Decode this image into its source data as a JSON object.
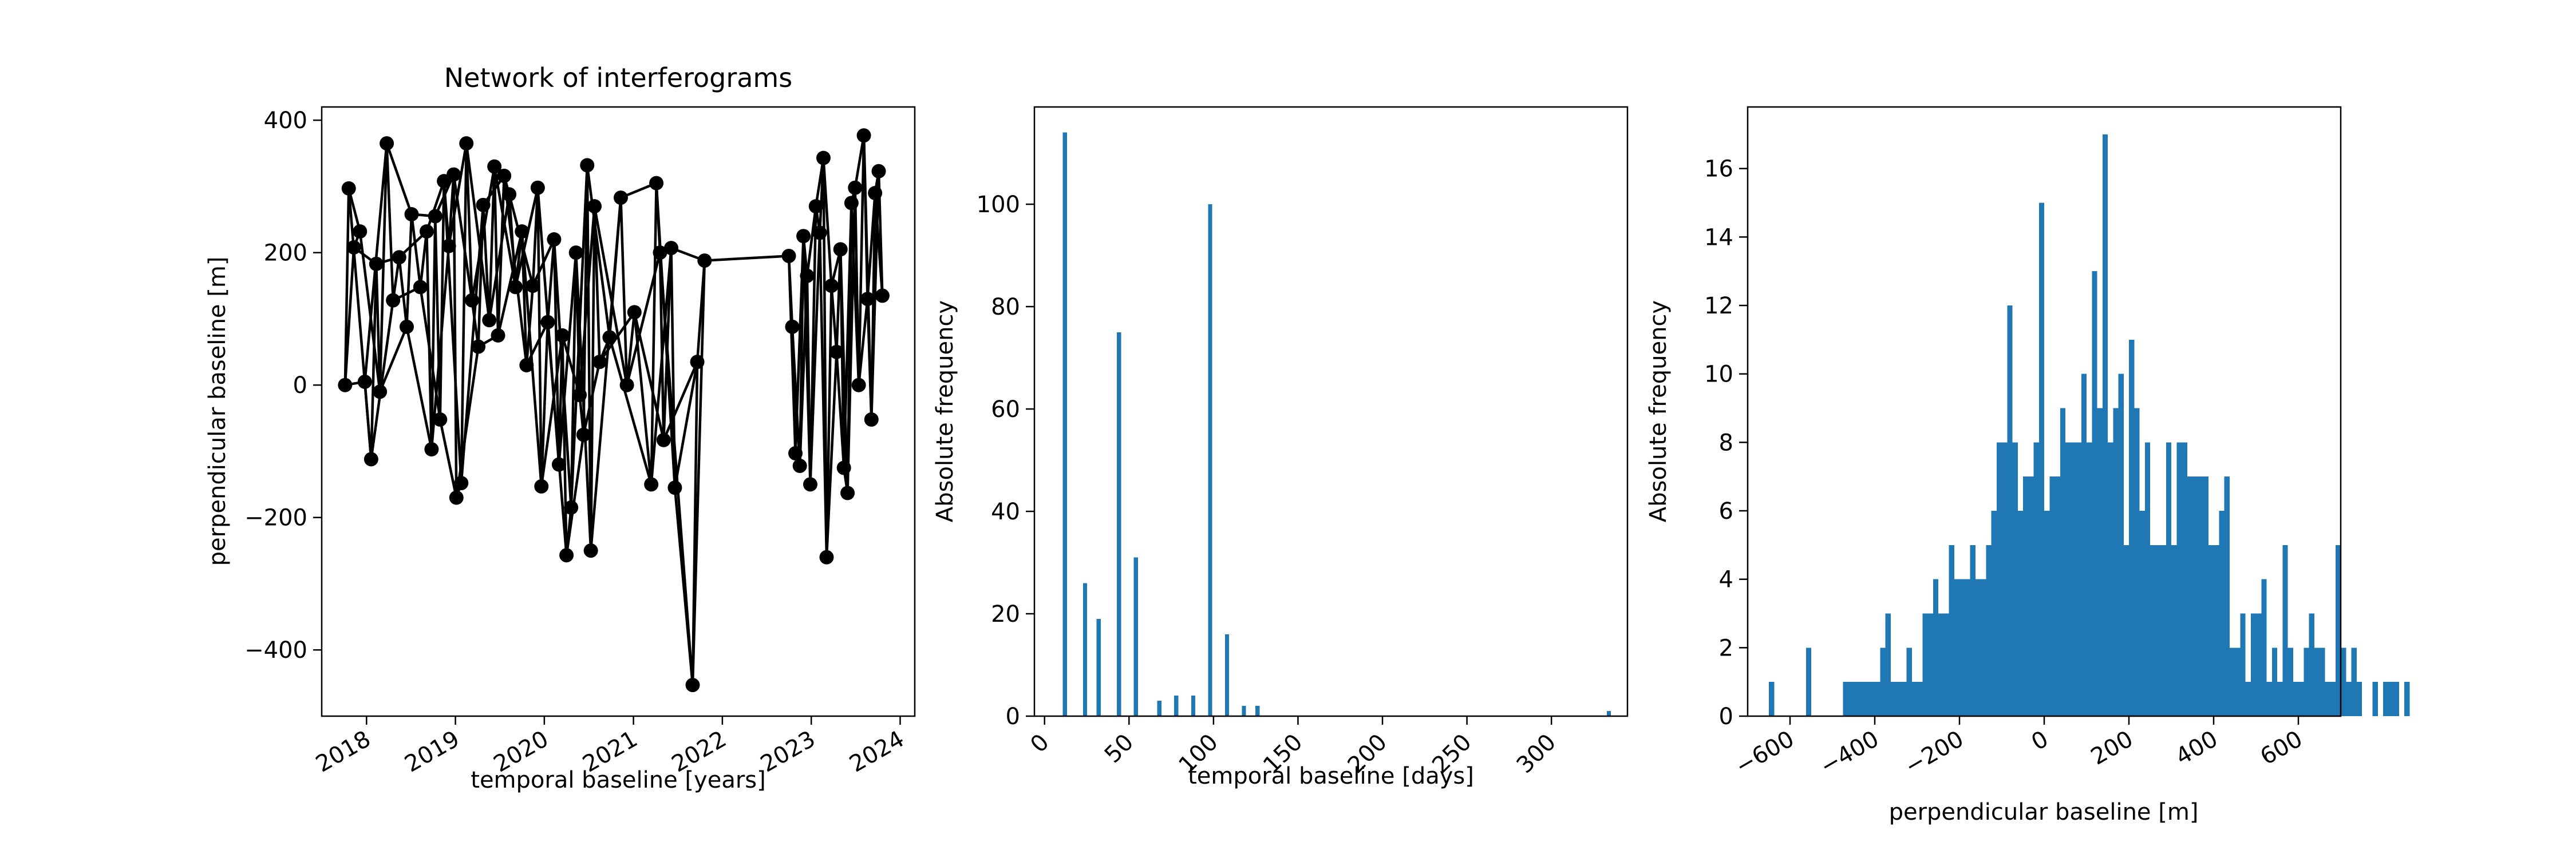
{
  "figure": {
    "background": "#ffffff",
    "axis_color": "#000000"
  },
  "chart_data": [
    {
      "type": "line",
      "title": "Network of interferograms",
      "xlabel": "temporal baseline [years]",
      "ylabel": "perpendicular baseline [m]",
      "xlim": [
        "2017-07-01",
        "2024-03-01"
      ],
      "ylim": [
        -500,
        420
      ],
      "xticks": [
        "2018",
        "2019",
        "2020",
        "2021",
        "2022",
        "2023",
        "2024"
      ],
      "yticks": [
        -400,
        -200,
        0,
        200,
        400
      ],
      "ytick_labels": [
        "−400",
        "−200",
        "0",
        "200",
        "400"
      ],
      "grid": false,
      "color": "#000000",
      "nodes": [
        {
          "date": "2017-10-05",
          "bperp": 0
        },
        {
          "date": "2017-10-20",
          "bperp": 297
        },
        {
          "date": "2017-11-10",
          "bperp": 208
        },
        {
          "date": "2017-12-05",
          "bperp": 232
        },
        {
          "date": "2017-12-25",
          "bperp": 5
        },
        {
          "date": "2018-01-20",
          "bperp": -112
        },
        {
          "date": "2018-02-10",
          "bperp": 183
        },
        {
          "date": "2018-02-25",
          "bperp": -10
        },
        {
          "date": "2018-03-25",
          "bperp": 365
        },
        {
          "date": "2018-04-20",
          "bperp": 128
        },
        {
          "date": "2018-05-15",
          "bperp": 193
        },
        {
          "date": "2018-06-15",
          "bperp": 88
        },
        {
          "date": "2018-07-05",
          "bperp": 258
        },
        {
          "date": "2018-08-10",
          "bperp": 148
        },
        {
          "date": "2018-09-05",
          "bperp": 232
        },
        {
          "date": "2018-09-25",
          "bperp": -97
        },
        {
          "date": "2018-10-10",
          "bperp": 255
        },
        {
          "date": "2018-10-30",
          "bperp": -52
        },
        {
          "date": "2018-11-15",
          "bperp": 308
        },
        {
          "date": "2018-12-05",
          "bperp": 210
        },
        {
          "date": "2018-12-25",
          "bperp": 318
        },
        {
          "date": "2019-01-05",
          "bperp": -170
        },
        {
          "date": "2019-01-25",
          "bperp": -148
        },
        {
          "date": "2019-02-15",
          "bperp": 365
        },
        {
          "date": "2019-03-10",
          "bperp": 128
        },
        {
          "date": "2019-04-05",
          "bperp": 58
        },
        {
          "date": "2019-04-25",
          "bperp": 272
        },
        {
          "date": "2019-05-20",
          "bperp": 98
        },
        {
          "date": "2019-06-10",
          "bperp": 330
        },
        {
          "date": "2019-06-25",
          "bperp": 75
        },
        {
          "date": "2019-07-20",
          "bperp": 316
        },
        {
          "date": "2019-08-10",
          "bperp": 288
        },
        {
          "date": "2019-09-05",
          "bperp": 148
        },
        {
          "date": "2019-10-01",
          "bperp": 232
        },
        {
          "date": "2019-10-20",
          "bperp": 30
        },
        {
          "date": "2019-11-15",
          "bperp": 150
        },
        {
          "date": "2019-12-05",
          "bperp": 298
        },
        {
          "date": "2019-12-20",
          "bperp": -153
        },
        {
          "date": "2020-01-15",
          "bperp": 95
        },
        {
          "date": "2020-02-10",
          "bperp": 220
        },
        {
          "date": "2020-03-01",
          "bperp": -120
        },
        {
          "date": "2020-03-15",
          "bperp": 75
        },
        {
          "date": "2020-04-01",
          "bperp": -257
        },
        {
          "date": "2020-04-20",
          "bperp": -185
        },
        {
          "date": "2020-05-10",
          "bperp": 200
        },
        {
          "date": "2020-05-25",
          "bperp": -15
        },
        {
          "date": "2020-06-10",
          "bperp": -75
        },
        {
          "date": "2020-06-25",
          "bperp": 332
        },
        {
          "date": "2020-07-10",
          "bperp": -250
        },
        {
          "date": "2020-07-25",
          "bperp": 270
        },
        {
          "date": "2020-08-15",
          "bperp": 35
        },
        {
          "date": "2020-09-25",
          "bperp": 72
        },
        {
          "date": "2020-11-10",
          "bperp": 283
        },
        {
          "date": "2020-12-05",
          "bperp": 0
        },
        {
          "date": "2021-01-05",
          "bperp": 110
        },
        {
          "date": "2021-03-15",
          "bperp": -150
        },
        {
          "date": "2021-04-05",
          "bperp": 305
        },
        {
          "date": "2021-04-20",
          "bperp": 200
        },
        {
          "date": "2021-05-05",
          "bperp": -83
        },
        {
          "date": "2021-06-05",
          "bperp": 207
        },
        {
          "date": "2021-06-20",
          "bperp": -155
        },
        {
          "date": "2021-09-01",
          "bperp": -453
        },
        {
          "date": "2021-09-20",
          "bperp": 35
        },
        {
          "date": "2021-10-20",
          "bperp": 188
        },
        {
          "date": "2022-10-01",
          "bperp": 195
        },
        {
          "date": "2022-10-15",
          "bperp": 88
        },
        {
          "date": "2022-10-28",
          "bperp": -103
        },
        {
          "date": "2022-11-15",
          "bperp": -122
        },
        {
          "date": "2022-11-30",
          "bperp": 225
        },
        {
          "date": "2022-12-15",
          "bperp": 165
        },
        {
          "date": "2022-12-28",
          "bperp": -150
        },
        {
          "date": "2023-01-20",
          "bperp": 270
        },
        {
          "date": "2023-02-05",
          "bperp": 230
        },
        {
          "date": "2023-02-20",
          "bperp": 343
        },
        {
          "date": "2023-03-05",
          "bperp": -260
        },
        {
          "date": "2023-03-25",
          "bperp": 150
        },
        {
          "date": "2023-04-15",
          "bperp": 50
        },
        {
          "date": "2023-05-01",
          "bperp": 205
        },
        {
          "date": "2023-05-15",
          "bperp": -125
        },
        {
          "date": "2023-05-30",
          "bperp": -163
        },
        {
          "date": "2023-06-15",
          "bperp": 275
        },
        {
          "date": "2023-06-30",
          "bperp": 298
        },
        {
          "date": "2023-07-15",
          "bperp": 0
        },
        {
          "date": "2023-08-05",
          "bperp": 377
        },
        {
          "date": "2023-08-20",
          "bperp": 130
        },
        {
          "date": "2023-09-05",
          "bperp": -52
        },
        {
          "date": "2023-09-20",
          "bperp": 290
        },
        {
          "date": "2023-10-05",
          "bperp": 323
        },
        {
          "date": "2023-10-20",
          "bperp": 135
        }
      ],
      "edges": [
        [
          0,
          1
        ],
        [
          0,
          2
        ],
        [
          0,
          4
        ],
        [
          1,
          3
        ],
        [
          1,
          5
        ],
        [
          2,
          3
        ],
        [
          2,
          6
        ],
        [
          3,
          7
        ],
        [
          4,
          5
        ],
        [
          4,
          8
        ],
        [
          5,
          6
        ],
        [
          5,
          9
        ],
        [
          6,
          7
        ],
        [
          6,
          10
        ],
        [
          7,
          8
        ],
        [
          7,
          11
        ],
        [
          8,
          9
        ],
        [
          8,
          12
        ],
        [
          9,
          10
        ],
        [
          9,
          13
        ],
        [
          10,
          11
        ],
        [
          10,
          14
        ],
        [
          11,
          12
        ],
        [
          11,
          15
        ],
        [
          12,
          13
        ],
        [
          12,
          16
        ],
        [
          13,
          14
        ],
        [
          13,
          17
        ],
        [
          14,
          15
        ],
        [
          14,
          18
        ],
        [
          15,
          16
        ],
        [
          15,
          19
        ],
        [
          16,
          17
        ],
        [
          16,
          20
        ],
        [
          17,
          18
        ],
        [
          17,
          21
        ],
        [
          18,
          19
        ],
        [
          18,
          22
        ],
        [
          19,
          20
        ],
        [
          19,
          23
        ],
        [
          20,
          21
        ],
        [
          20,
          24
        ],
        [
          21,
          22
        ],
        [
          21,
          25
        ],
        [
          22,
          23
        ],
        [
          22,
          26
        ],
        [
          23,
          24
        ],
        [
          23,
          27
        ],
        [
          24,
          25
        ],
        [
          24,
          28
        ],
        [
          25,
          26
        ],
        [
          25,
          29
        ],
        [
          26,
          27
        ],
        [
          26,
          30
        ],
        [
          27,
          28
        ],
        [
          27,
          31
        ],
        [
          28,
          29
        ],
        [
          28,
          32
        ],
        [
          29,
          30
        ],
        [
          29,
          33
        ],
        [
          30,
          31
        ],
        [
          30,
          34
        ],
        [
          31,
          32
        ],
        [
          31,
          35
        ],
        [
          32,
          33
        ],
        [
          32,
          36
        ],
        [
          33,
          34
        ],
        [
          33,
          37
        ],
        [
          34,
          35
        ],
        [
          34,
          38
        ],
        [
          35,
          36
        ],
        [
          35,
          39
        ],
        [
          36,
          37
        ],
        [
          36,
          40
        ],
        [
          37,
          38
        ],
        [
          37,
          41
        ],
        [
          38,
          39
        ],
        [
          38,
          42
        ],
        [
          39,
          40
        ],
        [
          39,
          43
        ],
        [
          40,
          41
        ],
        [
          40,
          44
        ],
        [
          41,
          42
        ],
        [
          41,
          45
        ],
        [
          42,
          43
        ],
        [
          42,
          46
        ],
        [
          43,
          44
        ],
        [
          43,
          47
        ],
        [
          44,
          45
        ],
        [
          44,
          48
        ],
        [
          45,
          46
        ],
        [
          45,
          49
        ],
        [
          46,
          47
        ],
        [
          46,
          50
        ],
        [
          47,
          48
        ],
        [
          47,
          51
        ],
        [
          48,
          49
        ],
        [
          48,
          52
        ],
        [
          49,
          50
        ],
        [
          49,
          53
        ],
        [
          50,
          51
        ],
        [
          50,
          54
        ],
        [
          51,
          52
        ],
        [
          51,
          55
        ],
        [
          52,
          53
        ],
        [
          52,
          56
        ],
        [
          53,
          54
        ],
        [
          53,
          57
        ],
        [
          54,
          55
        ],
        [
          54,
          58
        ],
        [
          55,
          56
        ],
        [
          55,
          59
        ],
        [
          56,
          57
        ],
        [
          56,
          60
        ],
        [
          57,
          58
        ],
        [
          57,
          61
        ],
        [
          58,
          59
        ],
        [
          58,
          62
        ],
        [
          59,
          60
        ],
        [
          59,
          63
        ],
        [
          60,
          61
        ],
        [
          60,
          62
        ],
        [
          61,
          62
        ],
        [
          61,
          63
        ],
        [
          62,
          63
        ],
        [
          63,
          64
        ],
        [
          64,
          65
        ],
        [
          64,
          66
        ],
        [
          65,
          66
        ],
        [
          65,
          67
        ],
        [
          66,
          67
        ],
        [
          66,
          68
        ],
        [
          67,
          68
        ],
        [
          67,
          69
        ],
        [
          68,
          69
        ],
        [
          68,
          70
        ],
        [
          69,
          70
        ],
        [
          69,
          71
        ],
        [
          70,
          71
        ],
        [
          70,
          72
        ],
        [
          71,
          72
        ],
        [
          71,
          73
        ],
        [
          72,
          73
        ],
        [
          72,
          74
        ],
        [
          73,
          74
        ],
        [
          73,
          75
        ],
        [
          74,
          75
        ],
        [
          74,
          76
        ],
        [
          75,
          76
        ],
        [
          75,
          77
        ],
        [
          76,
          77
        ],
        [
          76,
          78
        ],
        [
          77,
          78
        ],
        [
          77,
          79
        ],
        [
          78,
          79
        ],
        [
          78,
          80
        ],
        [
          79,
          80
        ],
        [
          79,
          81
        ],
        [
          80,
          81
        ],
        [
          80,
          82
        ],
        [
          81,
          82
        ],
        [
          81,
          83
        ],
        [
          82,
          83
        ],
        [
          82,
          84
        ],
        [
          83,
          84
        ],
        [
          83,
          85
        ],
        [
          84,
          85
        ],
        [
          84,
          86
        ],
        [
          85,
          86
        ],
        [
          85,
          87
        ],
        [
          86,
          87
        ],
        [
          86,
          88
        ],
        [
          87,
          88
        ]
      ]
    },
    {
      "type": "bar",
      "title": "",
      "xlabel": "temporal baseline [days]",
      "ylabel": "Absolute frequency",
      "xlim": [
        -6,
        345
      ],
      "ylim": [
        0,
        119
      ],
      "xticks": [
        0,
        50,
        100,
        150,
        200,
        250,
        300
      ],
      "yticks": [
        0,
        20,
        40,
        60,
        80,
        100
      ],
      "grid": false,
      "color": "#1f77b4",
      "bar_width_days": 2.5,
      "x": [
        12,
        24,
        32,
        44,
        54,
        68,
        78,
        88,
        98,
        108,
        118,
        126,
        334
      ],
      "values": [
        114,
        26,
        19,
        75,
        31,
        3,
        4,
        4,
        100,
        16,
        2,
        2,
        1
      ]
    },
    {
      "type": "bar",
      "title": "",
      "xlabel": "perpendicular baseline [m]",
      "ylabel": "Absolute frequency",
      "xlim": [
        -700,
        700
      ],
      "ylim": [
        0,
        17.8
      ],
      "xticks": [
        -600,
        -400,
        -200,
        0,
        200,
        400,
        600
      ],
      "xtick_labels": [
        "−600",
        "−400",
        "−200",
        "0",
        "200",
        "400",
        "600"
      ],
      "yticks": [
        0,
        2,
        4,
        6,
        8,
        10,
        12,
        14,
        16
      ],
      "grid": false,
      "color": "#1f77b4",
      "bin_width": 12.5,
      "bins_start": -650,
      "counts": [
        1,
        0,
        0,
        0,
        0,
        0,
        0,
        2,
        0,
        0,
        0,
        0,
        0,
        0,
        1,
        1,
        1,
        1,
        1,
        1,
        1,
        2,
        3,
        1,
        1,
        1,
        2,
        1,
        1,
        3,
        3,
        4,
        3,
        3,
        5,
        4,
        4,
        4,
        5,
        4,
        4,
        5,
        6,
        8,
        8,
        12,
        8,
        6,
        7,
        7,
        8,
        15,
        6,
        7,
        7,
        9,
        8,
        8,
        8,
        10,
        8,
        13,
        9,
        17,
        8,
        9,
        10,
        5,
        11,
        9,
        6,
        8,
        5,
        5,
        5,
        8,
        5,
        8,
        8,
        7,
        7,
        7,
        7,
        5,
        5,
        6,
        7,
        2,
        2,
        3,
        1,
        3,
        3,
        4,
        1,
        2,
        1,
        5,
        2,
        1,
        1,
        2,
        3,
        2,
        2,
        1,
        1,
        5,
        2,
        1,
        2,
        1,
        0,
        0,
        1,
        0,
        1,
        1,
        1,
        0,
        1
      ]
    }
  ]
}
